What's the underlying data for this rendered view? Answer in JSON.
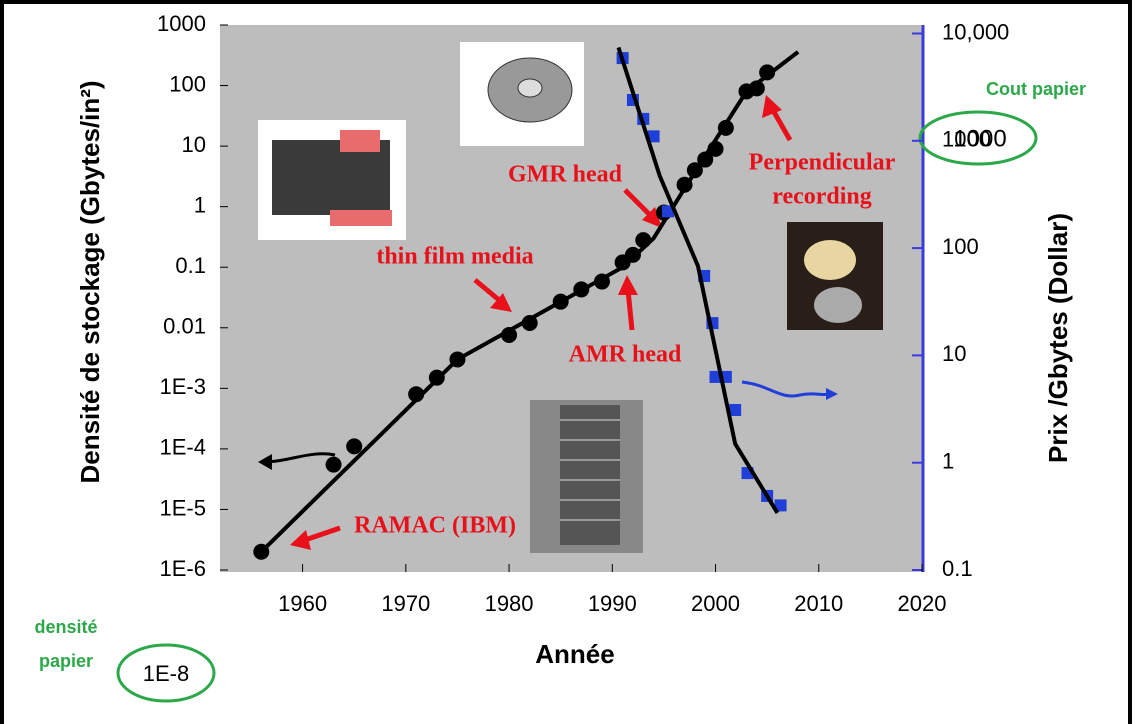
{
  "chart_data": {
    "type": "scatter",
    "log_scale": true,
    "xlabel": "Année",
    "ylabel": "Densité de stockage (Gbytes/in²)",
    "y2label": "Prix /Gbytes (Dollar)",
    "xlim": [
      1952,
      2020
    ],
    "xticks": [
      1960,
      1970,
      1980,
      1990,
      2000,
      2010,
      2020
    ],
    "ylim": [
      1e-06,
      1000
    ],
    "yticks": [
      {
        "value": 1e-06,
        "label": "1E-6"
      },
      {
        "value": 1e-05,
        "label": "1E-5"
      },
      {
        "value": 0.0001,
        "label": "1E-4"
      },
      {
        "value": 0.001,
        "label": "1E-3"
      },
      0.01,
      0.1,
      1,
      10,
      100,
      1000
    ],
    "y2lim": [
      0.1,
      12000
    ],
    "y2ticks": [
      0.1,
      1,
      10,
      100,
      1000,
      {
        "value": 10000,
        "label": "10,000"
      }
    ],
    "series": [
      {
        "mode": "markers",
        "color": "#000000",
        "x": [
          1956,
          1963,
          1965,
          1971,
          1973,
          1975,
          1980,
          1982,
          1985,
          1987,
          1989,
          1991,
          1992,
          1993,
          1995,
          1997,
          1998,
          1999,
          2000,
          2001,
          2003,
          2004,
          2005
        ],
        "values": [
          2e-06,
          5.5e-05,
          0.00011,
          0.0008,
          0.0015,
          0.003,
          0.0076,
          0.012,
          0.027,
          0.043,
          0.058,
          0.12,
          0.16,
          0.28,
          0.8,
          2.3,
          4,
          6,
          9,
          20,
          80,
          90,
          165
        ]
      },
      {
        "mode": "line",
        "color": "#000000",
        "x": [
          1956,
          1975,
          1991,
          1994,
          1997,
          2003,
          2008
        ],
        "values": [
          2e-06,
          0.003,
          0.1,
          0.3,
          2,
          80,
          360
        ]
      },
      {
        "mode": "markers",
        "axis": "y2",
        "color": "#1f3fd8",
        "x": [
          1991,
          1992,
          1993,
          1994,
          1995.4,
          1998.9,
          1999.7,
          2000,
          2001,
          2001.9,
          2003.1,
          2005,
          2006.3
        ],
        "values": [
          5900,
          2400,
          1600,
          1100,
          220,
          55,
          20,
          6.3,
          6.3,
          3.1,
          0.8,
          0.49,
          0.4
        ]
      },
      {
        "mode": "line",
        "axis": "y2",
        "color": "#000000",
        "x": [
          1990.6,
          1994.6,
          1998.3,
          2001.9,
          2006
        ],
        "values": [
          7400,
          470,
          68,
          1.5,
          0.34
        ]
      }
    ],
    "annotations": [
      {
        "text": "GMR head",
        "color": "#e8101a"
      },
      {
        "text": "Perpendicular",
        "color": "#e8101a"
      },
      {
        "text": "recording",
        "color": "#e8101a"
      },
      {
        "text": "thin film media",
        "color": "#e8101a"
      },
      {
        "text": "AMR head",
        "color": "#e8101a"
      },
      {
        "text": "RAMAC (IBM)",
        "color": "#e8101a"
      }
    ],
    "paper_notes": {
      "cost_label": "Cout papier",
      "cost_value": "1000",
      "density_label_1": "densité",
      "density_label_2": "papier",
      "density_value": "1E-8"
    }
  }
}
